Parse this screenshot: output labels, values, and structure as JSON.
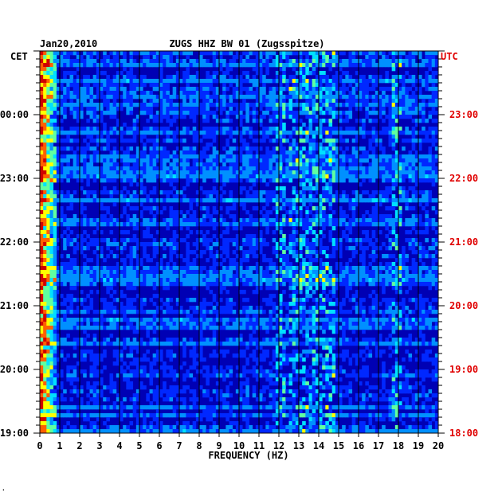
{
  "chart_data": {
    "type": "heatmap",
    "date": "Jan20,2010",
    "title": "ZUGS HHZ BW 01 (Zugsspitze)",
    "xlabel": "FREQUENCY (HZ)",
    "xlim": [
      0,
      20
    ],
    "x_ticks": [
      "0",
      "1",
      "2",
      "3",
      "4",
      "5",
      "6",
      "7",
      "8",
      "9",
      "10",
      "11",
      "12",
      "13",
      "14",
      "15",
      "16",
      "17",
      "18",
      "19",
      "20"
    ],
    "left_axis_label": "CET",
    "right_axis_label": "UTC",
    "left_ticks": [
      "00:00",
      "23:00",
      "22:00",
      "21:00",
      "20:00",
      "19:00"
    ],
    "right_ticks": [
      "23:00",
      "22:00",
      "21:00",
      "20:00",
      "19:00",
      "18:00"
    ],
    "tick_color_right": "#e00000",
    "colormap": [
      "#00007a",
      "#0000c8",
      "#0028ff",
      "#0090ff",
      "#00e0ff",
      "#60ffa0",
      "#ffff00",
      "#ff6000",
      "#d00000"
    ],
    "bright_bands_hz": [
      [
        0.0,
        0.8
      ],
      [
        12.0,
        12.1
      ],
      [
        12.6,
        14.6
      ],
      [
        17.9,
        18.0
      ]
    ]
  },
  "footer_mark": "."
}
